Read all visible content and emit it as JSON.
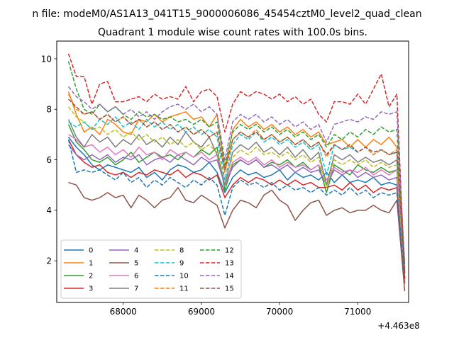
{
  "chart_data": {
    "type": "line",
    "suptitle": "n file: modeM0/AS1A13_041T15_9000006086_45454cztM0_level2_quad_clean",
    "title": "Quadrant 1 module wise count rates with 100.0s bins.",
    "offset_label": "+4.463e8",
    "xlim": [
      67150,
      71650
    ],
    "ylim": [
      0.35,
      10.7
    ],
    "xticks": [
      68000,
      69000,
      70000,
      71000
    ],
    "yticks": [
      2,
      4,
      6,
      8,
      10
    ],
    "x_start": 67300,
    "x_step": 100,
    "grid": false,
    "legend": {
      "placement": "lower-left",
      "columns": 4
    },
    "series": [
      {
        "name": "0",
        "color": "#1f77b4",
        "dash": false,
        "values": [
          6.9,
          6.5,
          6.2,
          5.8,
          5.6,
          5.8,
          5.7,
          5.6,
          5.5,
          5.7,
          5.3,
          5.5,
          5.2,
          5.6,
          5.8,
          5.7,
          5.5,
          5.6,
          5.9,
          5.5,
          4.7,
          5.3,
          5.6,
          5.4,
          5.5,
          5.3,
          5.4,
          5.6,
          5.2,
          5.5,
          5.3,
          5.4,
          5.2,
          5.5,
          5.1,
          5.4,
          5.1,
          5.2,
          5.1,
          5.3,
          5.0,
          5.1,
          5.0,
          1.6
        ]
      },
      {
        "name": "1",
        "color": "#ff7f0e",
        "dash": false,
        "values": [
          8.7,
          7.8,
          7.1,
          7.3,
          7.0,
          7.6,
          7.4,
          7.1,
          7.0,
          7.6,
          7.5,
          7.8,
          7.5,
          7.7,
          7.8,
          7.9,
          7.6,
          7.7,
          7.3,
          7.8,
          5.6,
          7.2,
          7.6,
          7.3,
          7.5,
          7.2,
          7.4,
          7.1,
          7.3,
          7.0,
          7.2,
          6.9,
          7.1,
          6.6,
          6.7,
          6.8,
          6.5,
          6.8,
          6.5,
          6.8,
          6.6,
          6.9,
          6.5,
          1.5
        ]
      },
      {
        "name": "2",
        "color": "#2ca02c",
        "dash": false,
        "values": [
          7.4,
          6.7,
          6.4,
          6.0,
          5.9,
          6.1,
          5.8,
          6.0,
          6.3,
          5.9,
          6.1,
          6.3,
          6.1,
          6.2,
          6.0,
          6.3,
          6.1,
          6.4,
          6.2,
          6.5,
          4.8,
          5.8,
          6.0,
          5.8,
          6.0,
          5.7,
          5.9,
          5.8,
          6.0,
          5.7,
          5.9,
          5.6,
          5.8,
          4.7,
          5.8,
          5.6,
          5.4,
          5.8,
          5.6,
          5.5,
          5.7,
          5.5,
          5.6,
          1.5
        ]
      },
      {
        "name": "3",
        "color": "#d62728",
        "dash": false,
        "values": [
          6.8,
          6.2,
          5.9,
          5.7,
          5.8,
          5.5,
          5.4,
          5.5,
          5.3,
          5.5,
          5.4,
          5.6,
          5.5,
          5.4,
          5.6,
          5.3,
          5.5,
          5.4,
          5.2,
          5.4,
          4.5,
          5.0,
          5.3,
          5.1,
          5.3,
          5.2,
          5.0,
          5.2,
          5.0,
          5.2,
          5.0,
          5.1,
          4.9,
          4.9,
          5.0,
          4.8,
          5.1,
          4.8,
          5.0,
          4.7,
          4.9,
          4.8,
          4.9,
          1.1
        ]
      },
      {
        "name": "4",
        "color": "#9467bd",
        "dash": false,
        "values": [
          6.6,
          6.2,
          6.0,
          6.2,
          6.0,
          6.2,
          5.9,
          6.1,
          6.0,
          6.2,
          5.8,
          6.0,
          6.1,
          5.9,
          6.2,
          6.0,
          5.8,
          6.1,
          5.9,
          6.0,
          5.0,
          5.7,
          6.0,
          5.8,
          6.0,
          5.7,
          5.8,
          5.6,
          5.8,
          5.5,
          5.7,
          5.5,
          5.6,
          5.0,
          5.6,
          5.4,
          5.6,
          5.3,
          5.5,
          5.3,
          5.4,
          5.2,
          5.3,
          1.2
        ]
      },
      {
        "name": "5",
        "color": "#8c564b",
        "dash": false,
        "values": [
          5.1,
          5.0,
          4.5,
          4.4,
          4.5,
          4.7,
          4.5,
          4.6,
          4.1,
          4.6,
          4.4,
          4.1,
          4.4,
          4.5,
          4.9,
          4.4,
          4.3,
          4.6,
          4.4,
          4.2,
          3.3,
          4.0,
          4.4,
          4.3,
          4.1,
          4.6,
          4.8,
          4.4,
          4.2,
          3.6,
          4.0,
          4.3,
          4.4,
          3.8,
          4.0,
          4.1,
          3.9,
          4.0,
          4.0,
          4.2,
          4.0,
          3.9,
          4.4,
          0.8
        ]
      },
      {
        "name": "6",
        "color": "#e377c2",
        "dash": false,
        "values": [
          7.0,
          6.8,
          6.5,
          6.6,
          6.3,
          6.5,
          6.2,
          6.4,
          6.1,
          6.5,
          6.2,
          6.3,
          6.0,
          6.4,
          6.2,
          6.3,
          6.1,
          6.3,
          6.0,
          6.2,
          5.0,
          5.9,
          6.1,
          5.9,
          6.1,
          5.8,
          6.0,
          5.7,
          5.9,
          5.7,
          5.8,
          5.6,
          5.8,
          5.2,
          5.7,
          5.5,
          5.6,
          5.5,
          5.7,
          5.4,
          5.6,
          5.4,
          5.6,
          1.3
        ]
      },
      {
        "name": "7",
        "color": "#7f7f7f",
        "dash": false,
        "values": [
          7.6,
          6.9,
          6.5,
          7.0,
          6.7,
          6.9,
          6.5,
          6.8,
          6.6,
          7.0,
          6.6,
          6.8,
          6.5,
          6.9,
          6.6,
          7.1,
          6.7,
          6.5,
          6.9,
          6.2,
          5.0,
          6.3,
          6.6,
          6.4,
          6.7,
          6.3,
          6.5,
          6.2,
          6.5,
          6.1,
          6.4,
          6.0,
          6.3,
          5.0,
          6.2,
          6.0,
          6.2,
          5.9,
          6.1,
          5.9,
          6.0,
          5.8,
          6.0,
          1.2
        ]
      },
      {
        "name": "8",
        "color": "#bcbd22",
        "dash": true,
        "values": [
          8.1,
          7.7,
          7.5,
          7.2,
          7.3,
          7.0,
          7.2,
          6.9,
          7.1,
          6.8,
          7.0,
          6.7,
          6.9,
          6.6,
          6.8,
          6.5,
          6.7,
          6.4,
          6.6,
          6.3,
          5.2,
          6.1,
          6.4,
          6.2,
          6.5,
          6.2,
          6.3,
          6.1,
          6.3,
          6.0,
          6.2,
          5.9,
          6.1,
          4.9,
          6.0,
          5.8,
          6.0,
          5.8,
          6.0,
          5.7,
          5.9,
          5.7,
          5.8,
          1.4
        ]
      },
      {
        "name": "9",
        "color": "#17becf",
        "dash": true,
        "values": [
          7.5,
          7.3,
          7.5,
          7.2,
          7.6,
          7.4,
          7.7,
          7.3,
          7.5,
          7.2,
          7.6,
          7.3,
          7.5,
          7.2,
          7.4,
          7.1,
          7.3,
          7.0,
          7.2,
          6.9,
          5.2,
          6.6,
          7.0,
          6.8,
          7.1,
          6.7,
          6.9,
          6.6,
          6.8,
          6.5,
          6.7,
          6.4,
          6.6,
          5.4,
          6.6,
          6.4,
          6.5,
          6.3,
          6.5,
          6.2,
          6.4,
          6.2,
          6.3,
          1.6
        ]
      },
      {
        "name": "10",
        "color": "#1f77b4",
        "dash": true,
        "values": [
          6.8,
          5.5,
          5.6,
          5.5,
          5.6,
          5.4,
          5.2,
          5.5,
          5.1,
          5.3,
          4.9,
          5.2,
          5.0,
          5.3,
          5.1,
          4.9,
          5.2,
          5.0,
          5.3,
          5.0,
          3.8,
          4.9,
          5.2,
          5.0,
          5.1,
          4.9,
          5.1,
          4.8,
          5.0,
          4.8,
          4.9,
          4.7,
          4.9,
          4.6,
          4.8,
          4.6,
          4.9,
          4.6,
          4.8,
          4.5,
          4.7,
          4.6,
          4.7,
          1.3
        ]
      },
      {
        "name": "11",
        "color": "#ff7f0e",
        "dash": true,
        "values": [
          8.6,
          8.0,
          7.8,
          7.9,
          7.6,
          7.8,
          7.5,
          7.7,
          7.4,
          7.6,
          7.3,
          7.5,
          7.2,
          7.4,
          7.1,
          7.3,
          7.0,
          7.2,
          6.9,
          7.1,
          5.5,
          6.8,
          7.1,
          6.9,
          7.2,
          6.8,
          7.0,
          6.7,
          6.9,
          6.6,
          6.8,
          6.5,
          6.7,
          6.1,
          6.6,
          6.4,
          6.6,
          6.3,
          6.5,
          6.2,
          6.4,
          6.2,
          6.4,
          1.7
        ]
      },
      {
        "name": "12",
        "color": "#2ca02c",
        "dash": true,
        "values": [
          9.9,
          8.8,
          8.0,
          7.8,
          8.2,
          7.9,
          8.1,
          7.8,
          7.6,
          7.9,
          7.7,
          7.8,
          7.6,
          7.7,
          7.5,
          7.6,
          7.4,
          7.6,
          7.3,
          7.5,
          5.8,
          7.1,
          7.4,
          7.2,
          7.4,
          7.1,
          7.3,
          7.0,
          7.2,
          6.9,
          7.1,
          6.8,
          7.0,
          6.5,
          7.0,
          6.8,
          7.1,
          6.9,
          7.2,
          7.0,
          7.3,
          7.1,
          7.2,
          1.9
        ]
      },
      {
        "name": "13",
        "color": "#d62728",
        "dash": true,
        "values": [
          10.2,
          9.3,
          9.3,
          8.2,
          9.0,
          9.1,
          8.3,
          8.3,
          8.4,
          8.5,
          8.3,
          8.6,
          8.4,
          8.5,
          8.4,
          8.9,
          8.3,
          8.7,
          8.8,
          8.5,
          7.1,
          8.2,
          8.7,
          8.5,
          8.7,
          8.6,
          8.4,
          8.6,
          8.3,
          8.5,
          8.2,
          8.4,
          7.8,
          7.5,
          8.3,
          8.3,
          8.2,
          8.6,
          8.2,
          8.8,
          9.4,
          8.1,
          8.6,
          1.3
        ]
      },
      {
        "name": "14",
        "color": "#9467bd",
        "dash": true,
        "values": [
          8.9,
          8.5,
          8.3,
          8.0,
          8.2,
          7.9,
          8.1,
          7.8,
          8.0,
          7.7,
          7.9,
          7.6,
          7.9,
          8.1,
          8.2,
          8.0,
          8.2,
          7.9,
          8.1,
          7.8,
          6.0,
          7.5,
          7.8,
          7.6,
          7.8,
          7.5,
          7.7,
          7.4,
          7.6,
          7.3,
          7.5,
          7.2,
          7.4,
          6.7,
          7.4,
          7.5,
          7.6,
          7.5,
          7.7,
          7.6,
          7.9,
          7.8,
          7.9,
          1.8
        ]
      },
      {
        "name": "15",
        "color": "#8c564b",
        "dash": true,
        "values": [
          8.4,
          8.1,
          7.8,
          7.9,
          7.6,
          7.8,
          7.5,
          7.7,
          7.4,
          7.6,
          7.3,
          7.5,
          7.2,
          7.4,
          7.1,
          7.3,
          7.0,
          7.2,
          6.9,
          7.1,
          5.6,
          6.8,
          7.1,
          6.9,
          7.1,
          6.8,
          7.0,
          6.7,
          6.9,
          6.6,
          6.8,
          6.5,
          6.7,
          6.2,
          6.6,
          6.4,
          6.6,
          6.3,
          6.5,
          6.3,
          6.4,
          6.2,
          6.3,
          1.6
        ]
      }
    ]
  }
}
